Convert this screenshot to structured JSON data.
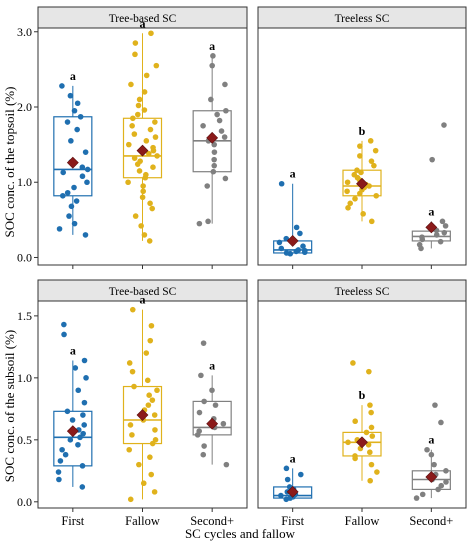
{
  "figure": {
    "xlabel": "SC cycles and fallow",
    "ylabel_top": "SOC conc. of the topsoil (%)",
    "ylabel_bottom": "SOC conc. of the subsoil (%)"
  },
  "colors": {
    "First": "#1f6fb0",
    "Fallow": "#e0b21c",
    "Second+": "#808080",
    "mean": "#8b1a1a",
    "strip": "#e6e6e6"
  },
  "chart_data": [
    {
      "type": "box",
      "panel": "Tree-based SC",
      "soil": "topsoil",
      "ylabel": "SOC conc. of the topsoil (%)",
      "ylim": [
        -0.1,
        3.05
      ],
      "yticks": [
        0.0,
        1.0,
        2.0,
        3.0
      ],
      "yticklabels": [
        "0.0",
        "1.0",
        "2.0",
        "3.0"
      ],
      "categories": [
        "First",
        "Fallow",
        "Second+"
      ],
      "boxes": [
        {
          "group": "First",
          "min": 0.3,
          "q1": 0.82,
          "median": 1.17,
          "q3": 1.87,
          "max": 2.28,
          "mean": 1.26,
          "letter": "a",
          "points": [
            0.3,
            0.38,
            0.45,
            0.55,
            0.68,
            0.75,
            0.82,
            0.86,
            0.93,
            1.0,
            1.08,
            1.13,
            1.17,
            1.2,
            1.27,
            1.4,
            1.55,
            1.7,
            1.8,
            1.87,
            1.95,
            2.05,
            2.15,
            2.28
          ]
        },
        {
          "group": "Fallow",
          "min": 0.22,
          "q1": 1.06,
          "median": 1.35,
          "q3": 1.85,
          "max": 2.98,
          "mean": 1.42,
          "letter": "a",
          "points": [
            0.22,
            0.3,
            0.42,
            0.55,
            0.65,
            0.72,
            0.8,
            0.88,
            0.95,
            1.0,
            1.06,
            1.1,
            1.15,
            1.2,
            1.24,
            1.28,
            1.32,
            1.35,
            1.38,
            1.42,
            1.46,
            1.5,
            1.55,
            1.6,
            1.64,
            1.7,
            1.75,
            1.8,
            1.85,
            1.9,
            1.96,
            2.02,
            2.1,
            2.2,
            2.3,
            2.42,
            2.55,
            2.7,
            2.85,
            2.98
          ]
        },
        {
          "group": "Second+",
          "min": 0.45,
          "q1": 1.14,
          "median": 1.55,
          "q3": 1.95,
          "max": 2.68,
          "mean": 1.59,
          "letter": "a",
          "points": [
            0.45,
            0.48,
            0.95,
            1.05,
            1.14,
            1.22,
            1.3,
            1.4,
            1.5,
            1.55,
            1.6,
            1.68,
            1.75,
            1.82,
            1.9,
            1.95,
            2.1,
            2.3,
            2.55,
            2.68
          ]
        }
      ]
    },
    {
      "type": "box",
      "panel": "Treeless SC",
      "soil": "topsoil",
      "ylim": [
        -0.1,
        3.05
      ],
      "categories": [
        "First",
        "Fallow",
        "Second+"
      ],
      "boxes": [
        {
          "group": "First",
          "min": 0.05,
          "q1": 0.06,
          "median": 0.1,
          "q3": 0.22,
          "max": 0.98,
          "mean": 0.22,
          "letter": "a",
          "points": [
            0.05,
            0.06,
            0.07,
            0.08,
            0.09,
            0.1,
            0.12,
            0.15,
            0.2,
            0.25,
            0.32,
            0.4,
            0.98
          ]
        },
        {
          "group": "Fallow",
          "min": 0.48,
          "q1": 0.82,
          "median": 0.95,
          "q3": 1.16,
          "max": 1.55,
          "mean": 0.98,
          "letter": "b",
          "points": [
            0.48,
            0.58,
            0.66,
            0.72,
            0.78,
            0.82,
            0.85,
            0.88,
            0.9,
            0.93,
            0.95,
            0.97,
            1.0,
            1.03,
            1.06,
            1.1,
            1.13,
            1.16,
            1.22,
            1.28,
            1.35,
            1.42,
            1.48,
            1.55
          ]
        },
        {
          "group": "Second+",
          "min": 0.12,
          "q1": 0.22,
          "median": 0.28,
          "q3": 0.35,
          "max": 0.48,
          "mean": 0.4,
          "letter": "a",
          "points": [
            0.12,
            0.17,
            0.21,
            0.24,
            0.27,
            0.3,
            0.33,
            0.36,
            0.42,
            0.48,
            1.3,
            1.76
          ]
        }
      ]
    },
    {
      "type": "box",
      "panel": "Tree-based SC",
      "soil": "subsoil",
      "ylabel": "SOC conc. of the subsoil (%)",
      "ylim": [
        -0.05,
        1.62
      ],
      "yticks": [
        0.0,
        0.5,
        1.0,
        1.5
      ],
      "yticklabels": [
        "0.0",
        "0.5",
        "1.0",
        "1.5"
      ],
      "categories": [
        "First",
        "Fallow",
        "Second+"
      ],
      "boxes": [
        {
          "group": "First",
          "min": 0.12,
          "q1": 0.29,
          "median": 0.52,
          "q3": 0.73,
          "max": 1.14,
          "mean": 0.57,
          "letter": "a",
          "points": [
            0.12,
            0.18,
            0.24,
            0.29,
            0.33,
            0.38,
            0.42,
            0.46,
            0.5,
            0.52,
            0.55,
            0.58,
            0.62,
            0.66,
            0.7,
            0.73,
            0.8,
            0.9,
            1.0,
            1.08,
            1.14,
            1.35,
            1.43
          ]
        },
        {
          "group": "Fallow",
          "min": 0.02,
          "q1": 0.47,
          "median": 0.66,
          "q3": 0.93,
          "max": 1.55,
          "mean": 0.7,
          "letter": "a",
          "points": [
            0.02,
            0.08,
            0.15,
            0.22,
            0.3,
            0.36,
            0.42,
            0.47,
            0.5,
            0.54,
            0.58,
            0.62,
            0.66,
            0.7,
            0.74,
            0.78,
            0.82,
            0.86,
            0.9,
            0.93,
            0.98,
            1.05,
            1.12,
            1.2,
            1.3,
            1.42,
            1.55
          ]
        },
        {
          "group": "Second+",
          "min": 0.3,
          "q1": 0.54,
          "median": 0.6,
          "q3": 0.81,
          "max": 1.02,
          "mean": 0.63,
          "letter": "a",
          "points": [
            0.3,
            0.38,
            0.45,
            0.54,
            0.57,
            0.6,
            0.63,
            0.67,
            0.72,
            0.78,
            0.81,
            0.9,
            1.02,
            1.28
          ]
        }
      ]
    },
    {
      "type": "box",
      "panel": "Treeless SC",
      "soil": "subsoil",
      "ylim": [
        -0.05,
        1.62
      ],
      "categories": [
        "First",
        "Fallow",
        "Second+"
      ],
      "boxes": [
        {
          "group": "First",
          "min": 0.02,
          "q1": 0.03,
          "median": 0.05,
          "q3": 0.12,
          "max": 0.27,
          "mean": 0.08,
          "letter": "a",
          "points": [
            0.02,
            0.03,
            0.04,
            0.05,
            0.06,
            0.08,
            0.1,
            0.12,
            0.18,
            0.22,
            0.27
          ]
        },
        {
          "group": "Fallow",
          "min": 0.17,
          "q1": 0.37,
          "median": 0.48,
          "q3": 0.56,
          "max": 0.78,
          "mean": 0.48,
          "letter": "b",
          "points": [
            0.17,
            0.24,
            0.3,
            0.35,
            0.37,
            0.4,
            0.43,
            0.46,
            0.48,
            0.5,
            0.53,
            0.56,
            0.6,
            0.65,
            0.72,
            0.78,
            1.05,
            1.12
          ]
        },
        {
          "group": "Second+",
          "min": 0.03,
          "q1": 0.1,
          "median": 0.18,
          "q3": 0.25,
          "max": 0.42,
          "mean": 0.2,
          "letter": "a",
          "points": [
            0.03,
            0.06,
            0.1,
            0.13,
            0.16,
            0.18,
            0.22,
            0.25,
            0.3,
            0.38,
            0.42,
            0.64,
            0.78
          ]
        }
      ]
    }
  ]
}
